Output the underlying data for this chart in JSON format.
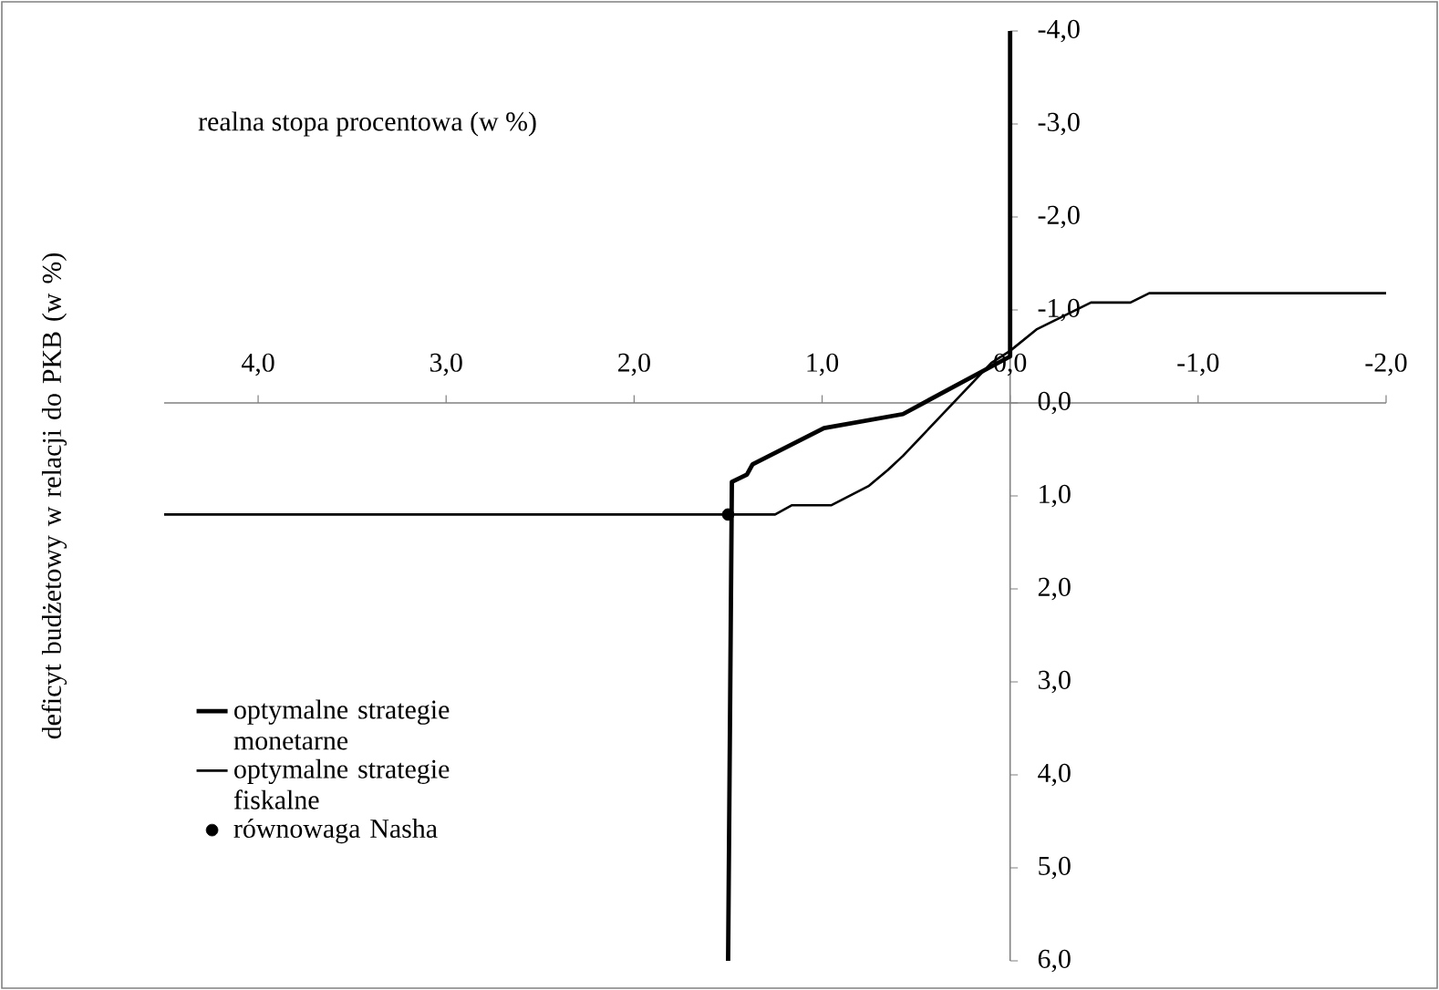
{
  "chart_data": {
    "type": "line",
    "xlabel": "realna stopa procentowa (w %)",
    "ylabel": "deficyt budżetowy w relacji do PKB (w %)",
    "xlim": [
      4.5,
      -2.0
    ],
    "ylim": [
      6.0,
      -4.0
    ],
    "xticks": [
      {
        "value": 4,
        "label": "4,0"
      },
      {
        "value": 3,
        "label": "3,0"
      },
      {
        "value": 2,
        "label": "2,0"
      },
      {
        "value": 1,
        "label": "1,0"
      },
      {
        "value": 0,
        "label": "0,0"
      },
      {
        "value": -1,
        "label": "-1,0"
      },
      {
        "value": -2,
        "label": "-2,0"
      }
    ],
    "yticks": [
      {
        "value": -4,
        "label": "-4,0"
      },
      {
        "value": -3,
        "label": "-3,0"
      },
      {
        "value": -2,
        "label": "-2,0"
      },
      {
        "value": -1,
        "label": "-1,0"
      },
      {
        "value": 0,
        "label": "0,0"
      },
      {
        "value": 1,
        "label": "1,0"
      },
      {
        "value": 2,
        "label": "2,0"
      },
      {
        "value": 3,
        "label": "3,0"
      },
      {
        "value": 4,
        "label": "4,0"
      },
      {
        "value": 5,
        "label": "5,0"
      },
      {
        "value": 6,
        "label": "6,0"
      }
    ],
    "legend": "left",
    "grid": false,
    "series": [
      {
        "name": "optymalne strategie monetarne",
        "color": "#000000",
        "x": [
          0,
          0,
          0.57,
          0.99,
          1.37,
          1.4,
          1.48,
          1.5
        ],
        "values": [
          -4.0,
          -0.5,
          0.12,
          0.27,
          0.66,
          0.77,
          0.85,
          6.0
        ]
      },
      {
        "name": "optymalne strategie fiskalne",
        "color": "#000000",
        "x": [
          4.5,
          1.25,
          1.16,
          0.95,
          0.75,
          0.65,
          0.57,
          0.1,
          0,
          -0.14,
          -0.43,
          -0.64,
          -0.74,
          -2.0
        ],
        "values": [
          1.2,
          1.2,
          1.1,
          1.1,
          0.89,
          0.72,
          0.57,
          -0.43,
          -0.56,
          -0.79,
          -1.08,
          -1.08,
          -1.18,
          -1.18
        ]
      },
      {
        "name": "równowaga Nasha",
        "type": "scatter",
        "marker": "circle",
        "color": "#000000",
        "x": [
          1.5
        ],
        "values": [
          1.2
        ]
      }
    ]
  }
}
